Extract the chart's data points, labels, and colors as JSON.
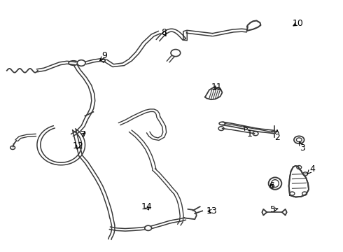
{
  "background_color": "#ffffff",
  "line_color": "#3a3a3a",
  "fig_width": 4.9,
  "fig_height": 3.6,
  "dpi": 100,
  "label_positions": {
    "1": [
      0.728,
      0.468,
      0.71,
      0.5
    ],
    "2": [
      0.808,
      0.455,
      0.808,
      0.488
    ],
    "3": [
      0.882,
      0.412,
      0.872,
      0.44
    ],
    "4": [
      0.91,
      0.33,
      0.895,
      0.308
    ],
    "5": [
      0.795,
      0.168,
      0.812,
      0.172
    ],
    "6": [
      0.792,
      0.262,
      0.802,
      0.278
    ],
    "7": [
      0.242,
      0.465,
      0.255,
      0.48
    ],
    "8": [
      0.478,
      0.87,
      0.488,
      0.848
    ],
    "9": [
      0.305,
      0.778,
      0.29,
      0.758
    ],
    "10": [
      0.868,
      0.908,
      0.848,
      0.892
    ],
    "11": [
      0.632,
      0.655,
      0.622,
      0.635
    ],
    "12": [
      0.228,
      0.42,
      0.222,
      0.398
    ],
    "13": [
      0.618,
      0.162,
      0.598,
      0.162
    ],
    "14": [
      0.428,
      0.178,
      0.438,
      0.158
    ]
  }
}
